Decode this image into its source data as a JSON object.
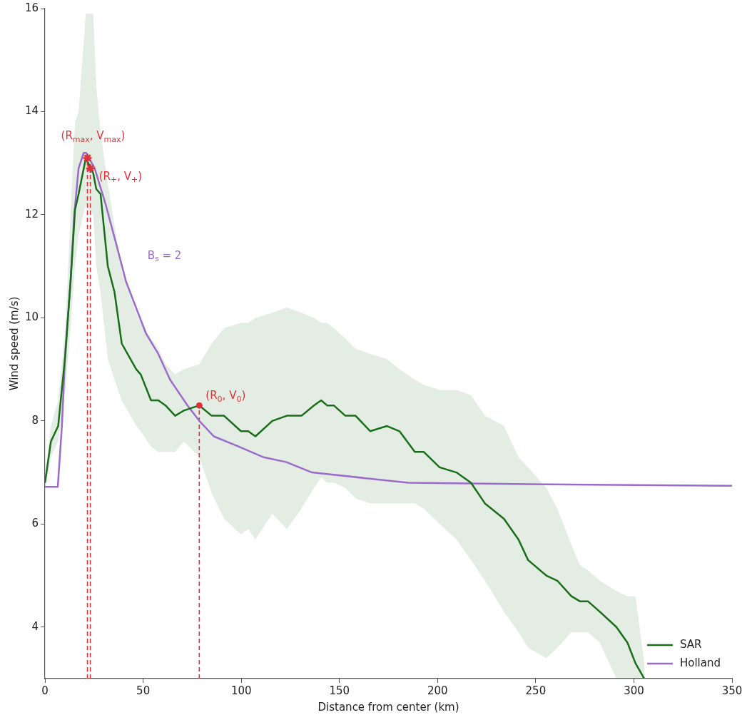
{
  "chart_data": {
    "type": "line",
    "xlabel": "Distance from center (km)",
    "ylabel": "Wind speed (m/s)",
    "xlim": [
      0,
      350
    ],
    "xticks": [
      0,
      50,
      100,
      150,
      200,
      250,
      300,
      350
    ],
    "ylim": [
      3,
      16
    ],
    "yticks": [
      4,
      6,
      8,
      10,
      12,
      14,
      16
    ],
    "grid": false,
    "legend": "bottom right",
    "marker": "none",
    "line_style": "solid",
    "series": [
      {
        "name": "SAR",
        "color": "#1a6e1a",
        "x": [
          0,
          3.0,
          6.7,
          10.4,
          13.0,
          15.3,
          17.1,
          20.8,
          24.6,
          26.1,
          28.3,
          32.0,
          35.4,
          39.1,
          46.5,
          48.8,
          54.0,
          57.7,
          61.4,
          66.3,
          70.7,
          78.6,
          84.9,
          91.2,
          99.8,
          103.5,
          107.2,
          115.8,
          123.2,
          130.7,
          137.0,
          140.7,
          143.7,
          147.1,
          153.0,
          158.2,
          165.7,
          174.2,
          180.6,
          188.4,
          192.9,
          201.0,
          209.6,
          217.0,
          224.1,
          233.8,
          241.2,
          246.1,
          255.4,
          261.0,
          268.1,
          272.5,
          276.6,
          282.6,
          291.1,
          296.7,
          300.8,
          305.3
        ],
        "values": [
          6.8,
          7.6,
          7.9,
          9.3,
          10.7,
          12.1,
          12.4,
          13.1,
          12.8,
          12.5,
          12.4,
          11.0,
          10.5,
          9.5,
          9.0,
          8.9,
          8.4,
          8.4,
          8.3,
          8.1,
          8.2,
          8.3,
          8.1,
          8.1,
          7.8,
          7.8,
          7.7,
          8.0,
          8.1,
          8.1,
          8.3,
          8.4,
          8.3,
          8.3,
          8.1,
          8.1,
          7.8,
          7.9,
          7.8,
          7.4,
          7.4,
          7.1,
          7.0,
          6.8,
          6.4,
          6.1,
          5.7,
          5.3,
          5.0,
          4.9,
          4.6,
          4.5,
          4.5,
          4.3,
          4.0,
          3.7,
          3.3,
          3.0
        ],
        "lower": [
          6.7,
          7.3,
          7.6,
          8.6,
          9.8,
          11.0,
          11.6,
          12.2,
          12.0,
          11.0,
          10.5,
          9.2,
          8.8,
          8.4,
          7.9,
          7.8,
          7.5,
          7.4,
          7.4,
          7.4,
          7.6,
          7.3,
          6.6,
          6.1,
          5.8,
          5.9,
          5.7,
          6.2,
          5.9,
          6.3,
          6.7,
          6.9,
          6.8,
          6.8,
          6.7,
          6.5,
          6.4,
          6.4,
          6.4,
          6.4,
          6.3,
          6.0,
          5.7,
          5.3,
          4.9,
          4.3,
          3.9,
          3.6,
          3.4,
          3.6,
          3.9,
          3.9,
          3.9,
          3.7,
          3.0,
          3.0,
          3.0,
          3.0
        ],
        "upper": [
          6.9,
          7.9,
          8.4,
          9.8,
          12.0,
          13.8,
          14.0,
          15.9,
          15.9,
          14.5,
          13.6,
          12.6,
          11.8,
          10.9,
          10.1,
          9.9,
          9.6,
          9.4,
          9.1,
          8.9,
          9.0,
          9.1,
          9.5,
          9.8,
          9.9,
          9.9,
          10.0,
          10.1,
          10.2,
          10.1,
          10.0,
          9.9,
          9.9,
          9.8,
          9.6,
          9.4,
          9.3,
          9.2,
          9.0,
          8.8,
          8.7,
          8.6,
          8.6,
          8.5,
          8.1,
          7.9,
          7.3,
          7.1,
          6.7,
          6.3,
          5.6,
          5.2,
          5.1,
          4.9,
          4.7,
          4.6,
          4.6,
          3.3
        ]
      },
      {
        "name": "Holland",
        "color": "#9b6bcc",
        "x": [
          0,
          6.5,
          8.6,
          10.4,
          13.0,
          14.9,
          17.1,
          19.7,
          21.0,
          25.3,
          30.9,
          36.5,
          41.3,
          51.4,
          57.7,
          63.7,
          72.6,
          78.6,
          86.0,
          98.7,
          111.0,
          123.0,
          136.0,
          185.0,
          255.0,
          350.0
        ],
        "values": [
          6.72,
          6.72,
          7.9,
          9.4,
          10.7,
          12.0,
          12.9,
          13.2,
          13.2,
          12.9,
          12.2,
          11.4,
          10.7,
          9.7,
          9.3,
          8.8,
          8.3,
          8.0,
          7.7,
          7.5,
          7.3,
          7.2,
          7.0,
          6.8,
          6.77,
          6.74
        ]
      },
      {
        "type": "line",
        "color": "#e0303a",
        "line_style": "dashed",
        "x": [
          21.6,
          21.6
        ],
        "values": [
          3,
          13.1
        ]
      },
      {
        "type": "line",
        "color": "#e0303a",
        "line_style": "dashed",
        "x": [
          23.1,
          23.1
        ],
        "values": [
          3,
          12.9
        ]
      },
      {
        "type": "line",
        "color": "#e0303a",
        "line_style": "dashed",
        "x": [
          78.6,
          78.6
        ],
        "values": [
          3,
          8.3
        ]
      },
      {
        "type": "scatter",
        "color": "#e0303a",
        "marker": "cross",
        "x": [
          21.6,
          23.1
        ],
        "values": [
          13.1,
          12.9
        ]
      },
      {
        "type": "scatter",
        "color": "#e0303a",
        "marker": "circle",
        "x": [
          78.6
        ],
        "values": [
          8.3
        ]
      }
    ],
    "annotations": [
      {
        "text": "(R$_{max}$, V$_{max}$)",
        "x": 21.6,
        "y": 13.1
      },
      {
        "text": "(R$_{+}$, V$_{+}$)",
        "x": 23.1,
        "y": 12.9
      },
      {
        "text": "B$_{s}$ = 2",
        "x": 41.3,
        "y": 10.7
      },
      {
        "text": "(R$_{0}$, V$_{0}$)",
        "x": 78.6,
        "y": 8.3
      }
    ]
  }
}
